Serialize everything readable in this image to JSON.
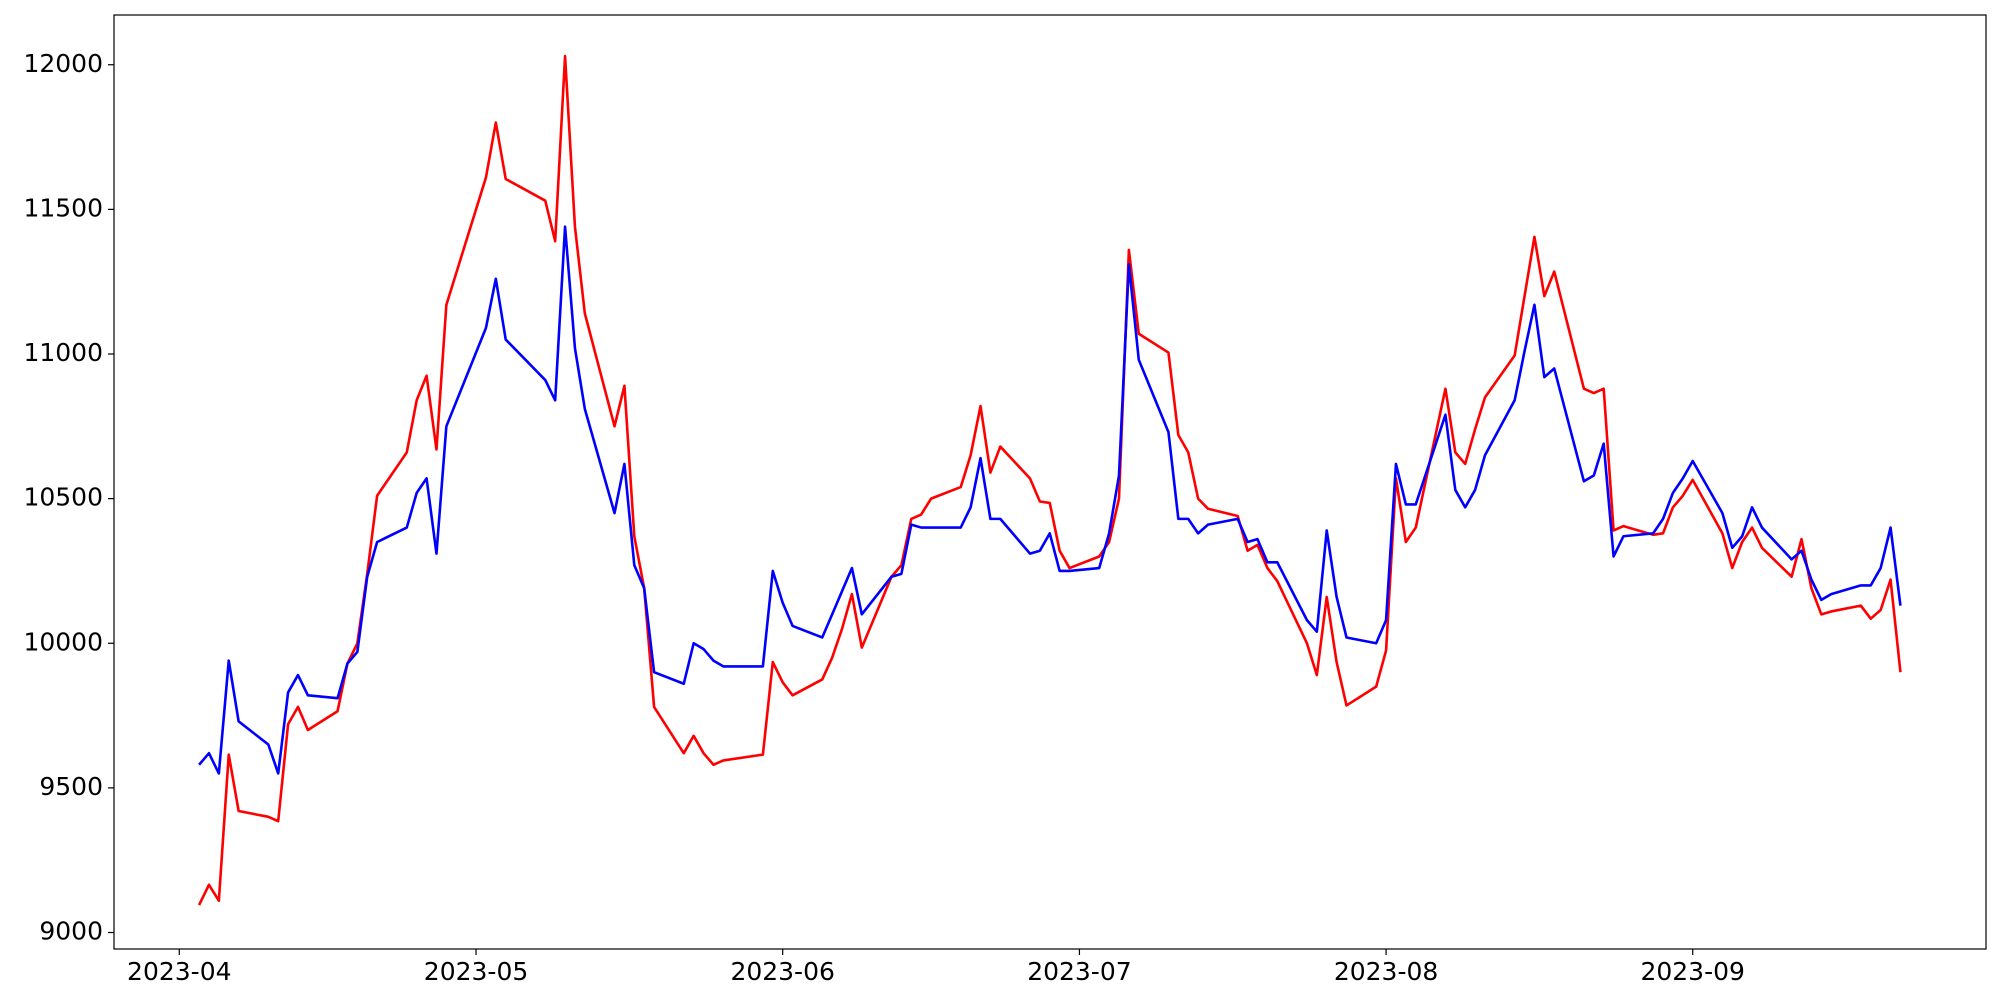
{
  "chart_data": {
    "type": "line",
    "x": [
      93,
      94,
      95,
      96,
      97,
      100,
      101,
      102,
      103,
      104,
      107,
      108,
      109,
      110,
      111,
      114,
      115,
      116,
      117,
      118,
      122,
      123,
      124,
      128,
      129,
      130,
      131,
      132,
      135,
      136,
      137,
      138,
      139,
      142,
      143,
      144,
      145,
      146,
      150,
      151,
      152,
      153,
      156,
      157,
      158,
      159,
      160,
      163,
      164,
      165,
      166,
      167,
      170,
      171,
      172,
      173,
      174,
      177,
      178,
      179,
      180,
      181,
      184,
      185,
      186,
      187,
      188,
      191,
      192,
      193,
      194,
      195,
      198,
      199,
      200,
      201,
      202,
      205,
      206,
      207,
      208,
      209,
      212,
      213,
      214,
      215,
      216,
      219,
      220,
      221,
      222,
      223,
      226,
      227,
      228,
      229,
      230,
      233,
      234,
      235,
      236,
      237,
      240,
      241,
      242,
      243,
      244,
      247,
      248,
      249,
      250,
      251,
      254,
      255,
      256,
      257,
      258,
      261,
      262,
      263,
      264,
      265
    ],
    "series": [
      {
        "color": "#ff0000",
        "values": [
          9095,
          9165,
          9110,
          9615,
          9420,
          9400,
          9385,
          9720,
          9780,
          9700,
          9765,
          9930,
          10000,
          10240,
          10510,
          10660,
          10840,
          10925,
          10670,
          11170,
          11610,
          11800,
          11605,
          11530,
          11390,
          12030,
          11440,
          11140,
          10750,
          10890,
          10370,
          10190,
          9780,
          9620,
          9680,
          9620,
          9580,
          9595,
          9615,
          9935,
          9865,
          9820,
          9875,
          9950,
          10050,
          10170,
          9985,
          10230,
          10270,
          10430,
          10445,
          10500,
          10540,
          10650,
          10820,
          10590,
          10680,
          10570,
          10490,
          10485,
          10320,
          10260,
          10300,
          10350,
          10500,
          11360,
          11070,
          11005,
          10720,
          10660,
          10500,
          10465,
          10440,
          10320,
          10340,
          10260,
          10215,
          10000,
          9890,
          10160,
          9935,
          9785,
          9850,
          9975,
          10570,
          10350,
          10400,
          10880,
          10660,
          10620,
          10740,
          10850,
          10995,
          11200,
          11405,
          11200,
          11285,
          10880,
          10865,
          10880,
          10390,
          10405,
          10375,
          10380,
          10470,
          10510,
          10565,
          10380,
          10260,
          10350,
          10400,
          10330,
          10230,
          10360,
          10190,
          10100,
          10110,
          10130,
          10085,
          10115,
          10220,
          9900
        ]
      },
      {
        "color": "#0000ff",
        "values": [
          9580,
          9620,
          9550,
          9940,
          9730,
          9650,
          9550,
          9830,
          9890,
          9820,
          9810,
          9930,
          9970,
          10230,
          10350,
          10400,
          10520,
          10570,
          10310,
          10750,
          11090,
          11260,
          11050,
          10910,
          10840,
          11440,
          11020,
          10810,
          10450,
          10620,
          10270,
          10190,
          9900,
          9860,
          10000,
          9980,
          9940,
          9920,
          9920,
          10250,
          10140,
          10060,
          10020,
          10100,
          10180,
          10260,
          10100,
          10230,
          10240,
          10410,
          10400,
          10400,
          10400,
          10470,
          10640,
          10430,
          10430,
          10310,
          10320,
          10380,
          10250,
          10250,
          10260,
          10380,
          10580,
          11310,
          10980,
          10730,
          10430,
          10430,
          10380,
          10410,
          10430,
          10350,
          10360,
          10280,
          10280,
          10080,
          10040,
          10390,
          10160,
          10020,
          10000,
          10080,
          10620,
          10480,
          10480,
          10790,
          10530,
          10470,
          10530,
          10650,
          10840,
          11010,
          11170,
          10920,
          10950,
          10560,
          10580,
          10690,
          10300,
          10370,
          10380,
          10430,
          10520,
          10570,
          10630,
          10450,
          10330,
          10370,
          10470,
          10400,
          10290,
          10320,
          10220,
          10150,
          10170,
          10200,
          10200,
          10260,
          10400,
          10130
        ]
      }
    ],
    "xlim": [
      84.4,
      273.65
    ],
    "xticks": [
      {
        "value": 91,
        "label": "2023-04"
      },
      {
        "value": 121,
        "label": "2023-05"
      },
      {
        "value": 152,
        "label": "2023-06"
      },
      {
        "value": 182,
        "label": "2023-07"
      },
      {
        "value": 213,
        "label": "2023-08"
      },
      {
        "value": 244,
        "label": "2023-09"
      }
    ],
    "ylim": [
      8943,
      12172
    ],
    "yticks": [
      9000,
      9500,
      10000,
      10500,
      11000,
      11500,
      12000
    ]
  }
}
